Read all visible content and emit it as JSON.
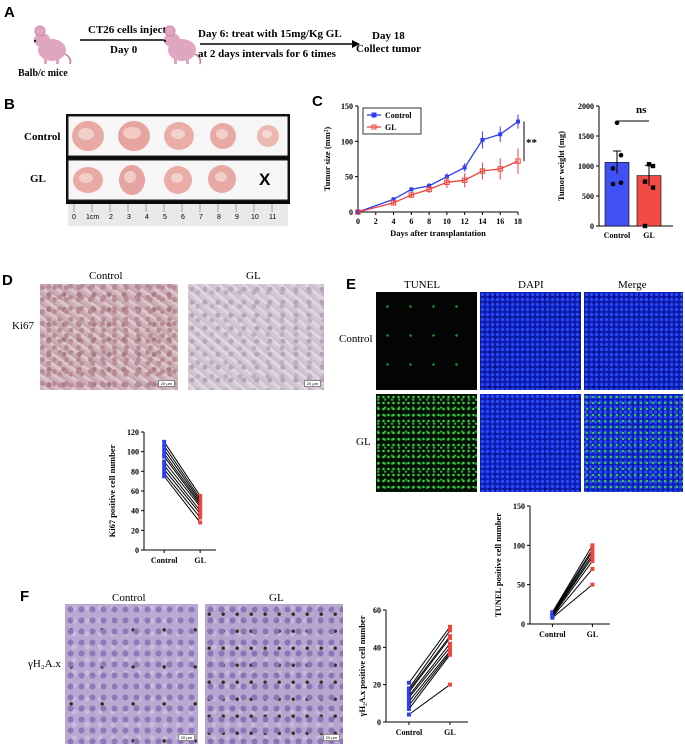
{
  "panel_a": {
    "letter": "A",
    "mouse_label": "Balb/c mice",
    "step1_top": "CT26 cells inject",
    "step1_bottom": "Day 0",
    "step2_top": "Day 6: treat with 15mg/Kg GL",
    "step2_bottom": "at 2 days intervals for 6 times",
    "step3_top": "Day 18",
    "step3_bottom": "Collect tumor",
    "colors": {
      "mouse": "#e0a6c0",
      "mouse_dark": "#c98aa8"
    }
  },
  "panel_b": {
    "letter": "B",
    "row_labels": [
      "Control",
      "GL"
    ],
    "missing_mark": "X",
    "ruler_numbers": [
      "0",
      "1cm",
      "2",
      "3",
      "4",
      "5",
      "6",
      "7",
      "8",
      "9",
      "10",
      "11"
    ]
  },
  "panel_c": {
    "letter": "C",
    "significance": "**",
    "ns_label": "ns"
  },
  "panel_d": {
    "letter": "D",
    "col_labels": [
      "Control",
      "GL"
    ],
    "row_label": "Ki67",
    "scale_text": "20 μm"
  },
  "panel_e": {
    "letter": "E",
    "col_labels": [
      "TUNEL",
      "DAPI",
      "Merge"
    ],
    "row_labels": [
      "Control",
      "GL"
    ]
  },
  "panel_f": {
    "letter": "F",
    "col_labels": [
      "Control",
      "GL"
    ],
    "row_label": "γH₂A.x",
    "scale_text": "20 μm"
  },
  "chart_data": [
    {
      "id": "tumor-size",
      "type": "line",
      "x": [
        0,
        4,
        6,
        8,
        10,
        12,
        14,
        16,
        18
      ],
      "series": [
        {
          "name": "Control",
          "color": "#2f3ff0",
          "values": [
            0,
            18,
            32,
            37,
            50,
            63,
            102,
            110,
            128
          ],
          "errors": [
            0,
            3,
            3,
            4,
            5,
            6,
            12,
            11,
            10
          ]
        },
        {
          "name": "GL",
          "color": "#f0443c",
          "values": [
            0,
            13,
            24,
            32,
            42,
            45,
            58,
            61,
            72
          ],
          "errors": [
            0,
            3,
            4,
            5,
            8,
            10,
            12,
            15,
            18
          ]
        }
      ],
      "xlabel": "Days after transplantation",
      "ylabel": "Tumor size (mm²)",
      "xticks": [
        0,
        2,
        4,
        6,
        8,
        10,
        12,
        14,
        16,
        18
      ],
      "yticks": [
        0,
        50,
        100,
        150
      ],
      "xlim": [
        0,
        18
      ],
      "ylim": [
        0,
        150
      ],
      "legend": "top-left"
    },
    {
      "id": "tumor-weight",
      "type": "bar",
      "categories": [
        "Control",
        "GL"
      ],
      "values": [
        1060,
        840
      ],
      "errors": [
        190,
        170
      ],
      "colors": [
        "#3f51f5",
        "#f24a44"
      ],
      "points": [
        [
          1720,
          1180,
          960,
          720,
          700
        ],
        [
          1030,
          1000,
          740,
          640,
          0
        ]
      ],
      "ylabel": "Tumor weight (mg)",
      "yticks": [
        0,
        500,
        1000,
        1500,
        2000
      ],
      "ylim": [
        0,
        2000
      ]
    },
    {
      "id": "ki67",
      "type": "scatter",
      "categories": [
        "Control",
        "GL"
      ],
      "pairs": [
        [
          110,
          55
        ],
        [
          106,
          52
        ],
        [
          102,
          50
        ],
        [
          98,
          48
        ],
        [
          95,
          46
        ],
        [
          90,
          44
        ],
        [
          86,
          40
        ],
        [
          82,
          37
        ],
        [
          78,
          33
        ],
        [
          75,
          28
        ]
      ],
      "colors": [
        "#2f3ff0",
        "#f0443c"
      ],
      "ylabel": "Ki67 positive cell number",
      "yticks": [
        0,
        20,
        40,
        60,
        80,
        100,
        120
      ],
      "ylim": [
        0,
        120
      ]
    },
    {
      "id": "tunel",
      "type": "scatter",
      "categories": [
        "Control",
        "GL"
      ],
      "pairs": [
        [
          15,
          100
        ],
        [
          14,
          95
        ],
        [
          13,
          92
        ],
        [
          12,
          88
        ],
        [
          11,
          85
        ],
        [
          10,
          80
        ],
        [
          9,
          70
        ],
        [
          8,
          50
        ]
      ],
      "colors": [
        "#2f3ff0",
        "#f0443c"
      ],
      "ylabel": "TUNEL positive cell number",
      "yticks": [
        0,
        50,
        100,
        150
      ],
      "ylim": [
        0,
        150
      ]
    },
    {
      "id": "gh2ax",
      "type": "scatter",
      "categories": [
        "Control",
        "GL"
      ],
      "pairs": [
        [
          21,
          51
        ],
        [
          18,
          49
        ],
        [
          17,
          46
        ],
        [
          16,
          45
        ],
        [
          14,
          42
        ],
        [
          13,
          40
        ],
        [
          11,
          38
        ],
        [
          9,
          37
        ],
        [
          7,
          36
        ],
        [
          4,
          20
        ]
      ],
      "colors": [
        "#2f3ff0",
        "#f0443c"
      ],
      "ylabel": "γH₂A.x positive cell number",
      "yticks": [
        0,
        20,
        40,
        60
      ],
      "ylim": [
        0,
        60
      ]
    }
  ]
}
